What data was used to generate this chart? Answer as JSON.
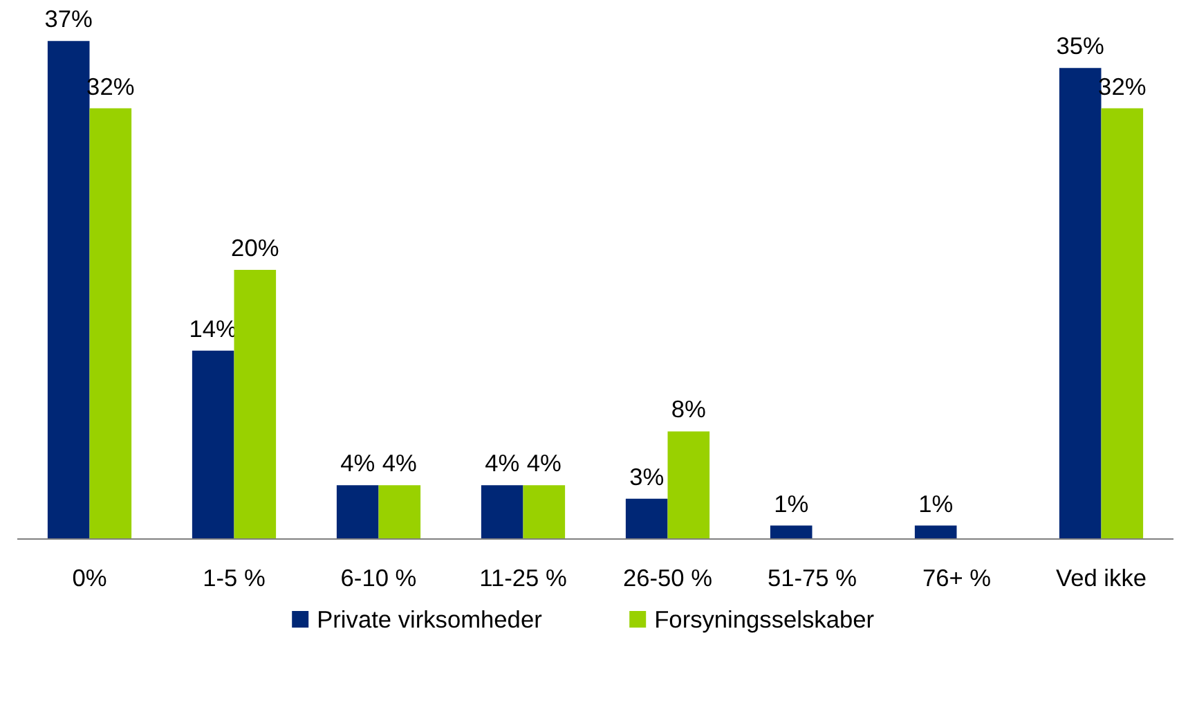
{
  "chart_data": {
    "type": "bar",
    "categories": [
      "0%",
      "1-5 %",
      "6-10 %",
      "11-25 %",
      "26-50 %",
      "51-75 %",
      "76+ %",
      "Ved ikke"
    ],
    "series": [
      {
        "name": "Private virksomheder",
        "color": "#002776",
        "values": [
          37,
          14,
          4,
          4,
          3,
          1,
          1,
          35
        ],
        "value_labels": [
          "37%",
          "14%",
          "4%",
          "4%",
          "3%",
          "1%",
          "1%",
          "35%"
        ]
      },
      {
        "name": "Forsyningsselskaber",
        "color": "#99d100",
        "values": [
          32,
          20,
          4,
          4,
          8,
          null,
          null,
          32
        ],
        "value_labels": [
          "32%",
          "20%",
          "4%",
          "4%",
          "8%",
          null,
          null,
          "32%"
        ]
      }
    ],
    "legend": "bottom",
    "grid": false
  }
}
